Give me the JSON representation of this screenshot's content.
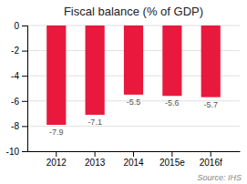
{
  "chart_data": {
    "type": "bar",
    "title": "Fiscal balance (% of GDP)",
    "categories": [
      "2012",
      "2013",
      "2014",
      "2015e",
      "2016f"
    ],
    "values": [
      -7.9,
      -7.1,
      -5.5,
      -5.6,
      -5.7
    ],
    "color": "#e8193c",
    "ylim": [
      -10,
      0
    ],
    "yticks": [
      0,
      -2,
      -4,
      -6,
      -8,
      -10
    ],
    "grid": true,
    "data_labels": true,
    "annotations": [
      "Source: IHS"
    ]
  }
}
